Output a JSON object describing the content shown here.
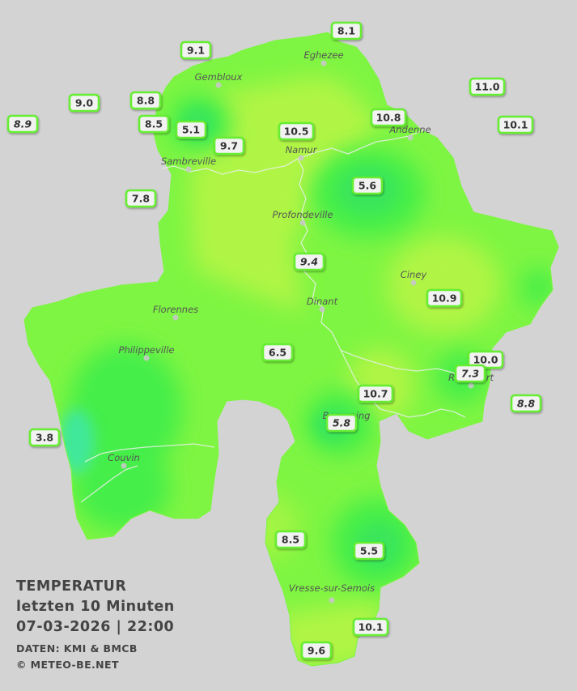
{
  "legend": {
    "title": "TEMPERATUR",
    "subtitle": "letzten 10 Minuten",
    "datetime": "07-03-2026  |  22:00",
    "source": "DATEN: KMI & BMCB",
    "copyright": "© METEO-BE.NET"
  },
  "colors": {
    "background": "#d3d3d3",
    "region_base": "#7ef542",
    "warm": "#b0f545",
    "cool": "#44ee4a",
    "coldest": "#3fe89a",
    "badge_border": "#66ee33"
  },
  "cities": [
    {
      "id": "eghezee",
      "name": "Eghezee"
    },
    {
      "id": "gembloux",
      "name": "Gembloux"
    },
    {
      "id": "andenne",
      "name": "Andenne"
    },
    {
      "id": "namur",
      "name": "Namur"
    },
    {
      "id": "sambreville",
      "name": "Sambreville"
    },
    {
      "id": "profondeville",
      "name": "Profondeville"
    },
    {
      "id": "ciney",
      "name": "Ciney"
    },
    {
      "id": "florennes",
      "name": "Florennes"
    },
    {
      "id": "dinant",
      "name": "Dinant"
    },
    {
      "id": "philippeville",
      "name": "Philippeville"
    },
    {
      "id": "rochefort",
      "name": "Rochefort"
    },
    {
      "id": "beauraing",
      "name": "Beauraing"
    },
    {
      "id": "couvin",
      "name": "Couvin"
    },
    {
      "id": "vresse",
      "name": "Vresse-sur-Semois"
    }
  ],
  "stations": [
    {
      "id": "s1",
      "value": "8.1",
      "italic": false
    },
    {
      "id": "s2",
      "value": "9.1",
      "italic": false
    },
    {
      "id": "s3",
      "value": "11.0",
      "italic": false
    },
    {
      "id": "s4",
      "value": "9.0",
      "italic": false
    },
    {
      "id": "s5",
      "value": "8.8",
      "italic": false
    },
    {
      "id": "s6",
      "value": "8.9",
      "italic": true
    },
    {
      "id": "s7",
      "value": "8.5",
      "italic": false
    },
    {
      "id": "s8",
      "value": "5.1",
      "italic": false
    },
    {
      "id": "s9",
      "value": "10.8",
      "italic": false
    },
    {
      "id": "s10",
      "value": "10.1",
      "italic": false
    },
    {
      "id": "s11",
      "value": "10.5",
      "italic": false
    },
    {
      "id": "s12",
      "value": "9.7",
      "italic": false
    },
    {
      "id": "s13",
      "value": "5.6",
      "italic": false
    },
    {
      "id": "s14",
      "value": "7.8",
      "italic": false
    },
    {
      "id": "s15",
      "value": "9.4",
      "italic": true
    },
    {
      "id": "s16",
      "value": "10.9",
      "italic": false
    },
    {
      "id": "s17",
      "value": "6.5",
      "italic": false
    },
    {
      "id": "s18",
      "value": "10.0",
      "italic": false
    },
    {
      "id": "s19",
      "value": "7.3",
      "italic": true
    },
    {
      "id": "s20",
      "value": "10.7",
      "italic": false
    },
    {
      "id": "s21",
      "value": "8.8",
      "italic": true
    },
    {
      "id": "s22",
      "value": "5.8",
      "italic": true
    },
    {
      "id": "s23",
      "value": "3.8",
      "italic": false
    },
    {
      "id": "s24",
      "value": "8.5",
      "italic": false
    },
    {
      "id": "s25",
      "value": "5.5",
      "italic": false
    },
    {
      "id": "s26",
      "value": "10.1",
      "italic": false
    },
    {
      "id": "s27",
      "value": "9.6",
      "italic": false
    }
  ]
}
